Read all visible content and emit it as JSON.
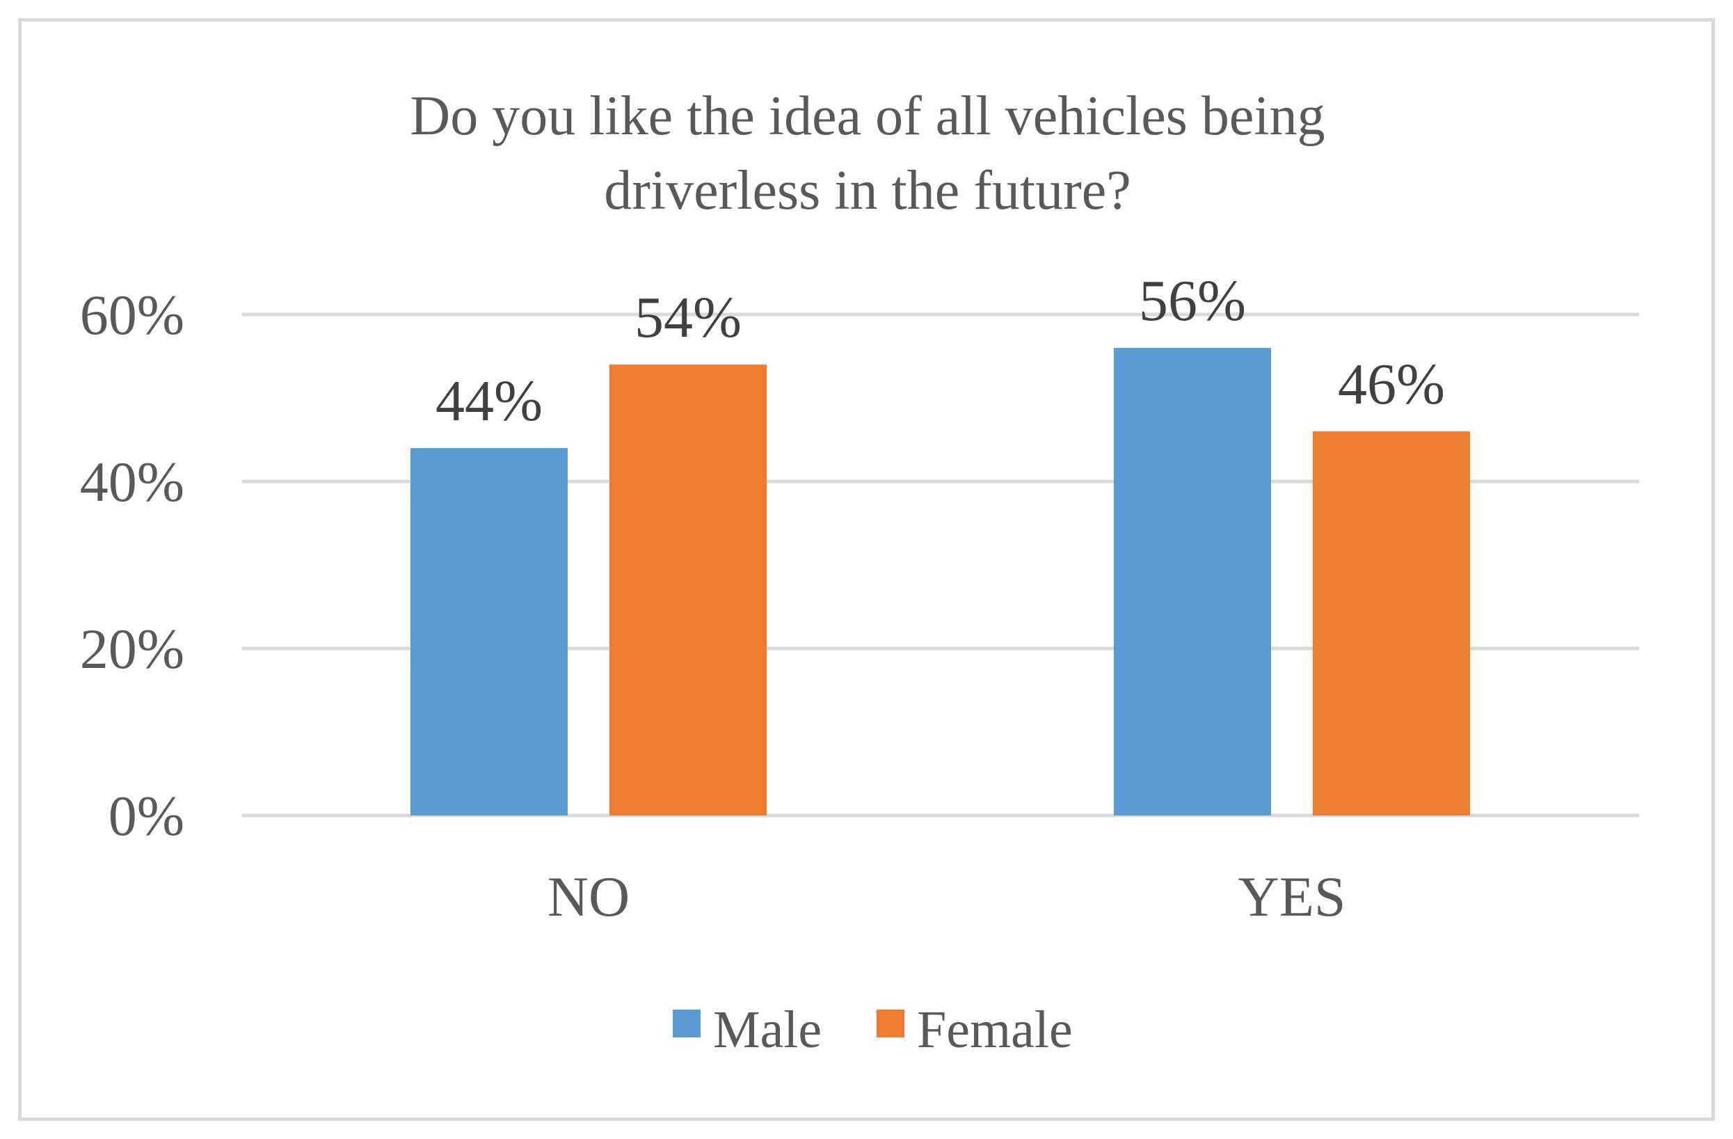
{
  "chart_data": {
    "type": "bar",
    "title_lines": [
      "Do you like the idea of all vehicles being",
      "driverless in the future?"
    ],
    "categories": [
      "NO",
      "YES"
    ],
    "series": [
      {
        "name": "Male",
        "values": [
          44,
          56
        ],
        "labels": [
          "44%",
          "56%"
        ],
        "color": "#5b9bd5"
      },
      {
        "name": "Female",
        "values": [
          54,
          46
        ],
        "labels": [
          "54%",
          "46%"
        ],
        "color": "#ed7d31"
      }
    ],
    "yticks": [
      0,
      20,
      40,
      60
    ],
    "ytick_labels": [
      "0%",
      "20%",
      "40%",
      "60%"
    ],
    "ylim": [
      0,
      60
    ],
    "xlabel": "",
    "ylabel": "",
    "grid": true,
    "legend_position": "bottom"
  }
}
